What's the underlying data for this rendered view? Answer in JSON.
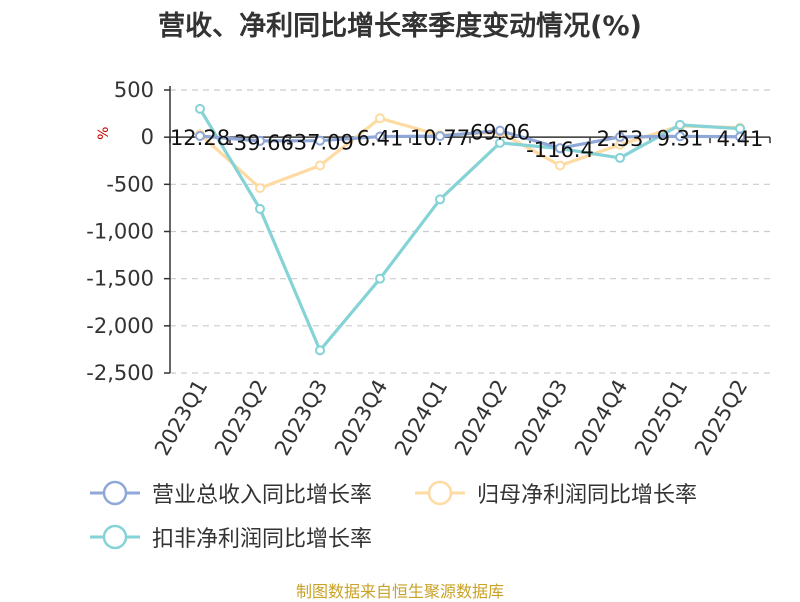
{
  "title": "营收、净利同比增长率季度变动情况(%)",
  "footer": "制图数据来自恒生聚源数据库",
  "chart_data": {
    "type": "line",
    "title": "营收、净利同比增长率季度变动情况(%)",
    "ylabel": "%",
    "ylim": [
      -2500,
      500
    ],
    "yticks": [
      500,
      0,
      -500,
      -1000,
      -1500,
      -2000,
      -2500
    ],
    "ytick_labels": [
      "500",
      "0",
      "-500",
      "-1,000",
      "-1,500",
      "-2,000",
      "-2,500"
    ],
    "grid": true,
    "legend": "bottom",
    "categories": [
      "2023Q1",
      "2023Q2",
      "2023Q3",
      "2023Q4",
      "2024Q1",
      "2024Q2",
      "2024Q3",
      "2024Q4",
      "2025Q1",
      "2025Q2"
    ],
    "series": [
      {
        "name": "营业总收入同比增长率",
        "color": "#8fa8d8",
        "values": [
          12.28,
          -39.66,
          -37.09,
          6.41,
          10.77,
          69.06,
          -116.4,
          2.53,
          9.31,
          4.41
        ],
        "data_labels": [
          "12.28",
          "-39.66",
          "-37.09",
          "6.41",
          "10.77",
          "69.06",
          "-116.4",
          "2.53",
          "9.31",
          "4.41"
        ]
      },
      {
        "name": "归母净利润同比增长率",
        "color": "#fddba3",
        "values": [
          30,
          -540,
          -300,
          200,
          20,
          50,
          -300,
          -80,
          120,
          100
        ]
      },
      {
        "name": "扣非净利润同比增长率",
        "color": "#85d3d6",
        "values": [
          300,
          -760,
          -2260,
          -1500,
          -660,
          -60,
          -120,
          -220,
          130,
          90
        ]
      }
    ]
  }
}
